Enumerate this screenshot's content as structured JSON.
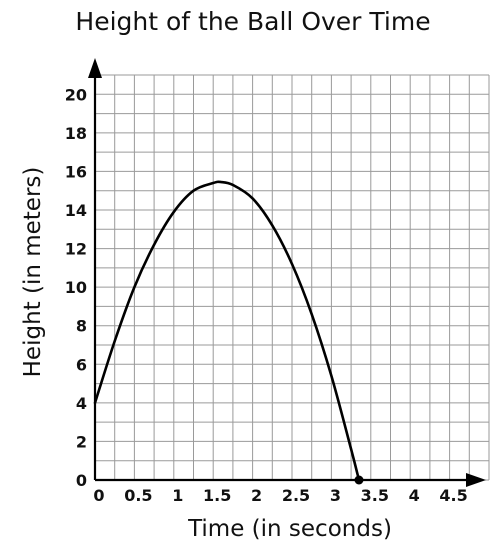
{
  "chart_data": {
    "type": "line",
    "title": "Height of the Ball Over Time",
    "xlabel": "Time (in seconds)",
    "ylabel": "Height (in meters)",
    "xlim": [
      0,
      5
    ],
    "ylim": [
      0,
      21
    ],
    "grid": true,
    "x_tick_labels": [
      "0",
      "0.5",
      "1",
      "1.5",
      "2",
      "2.5",
      "3",
      "3.5",
      "4",
      "4.5"
    ],
    "x_tick_values": [
      0,
      0.5,
      1,
      1.5,
      2,
      2.5,
      3,
      3.5,
      4,
      4.5
    ],
    "y_tick_labels": [
      "0",
      "2",
      "4",
      "6",
      "8",
      "10",
      "12",
      "14",
      "16",
      "18",
      "20"
    ],
    "y_tick_values": [
      0,
      2,
      4,
      6,
      8,
      10,
      12,
      14,
      16,
      18,
      20
    ],
    "series": [
      {
        "x": [
          0,
          0.25,
          0.5,
          0.75,
          1,
          1.25,
          1.5,
          1.6,
          1.75,
          2,
          2.25,
          2.5,
          2.75,
          3,
          3.25,
          3.35
        ],
        "y": [
          4,
          7.2,
          10.0,
          12.2,
          13.9,
          15.0,
          15.4,
          15.45,
          15.3,
          14.6,
          13.2,
          11.2,
          8.6,
          5.4,
          1.6,
          0
        ]
      }
    ],
    "endpoint": {
      "x": 3.35,
      "y": 0
    }
  }
}
